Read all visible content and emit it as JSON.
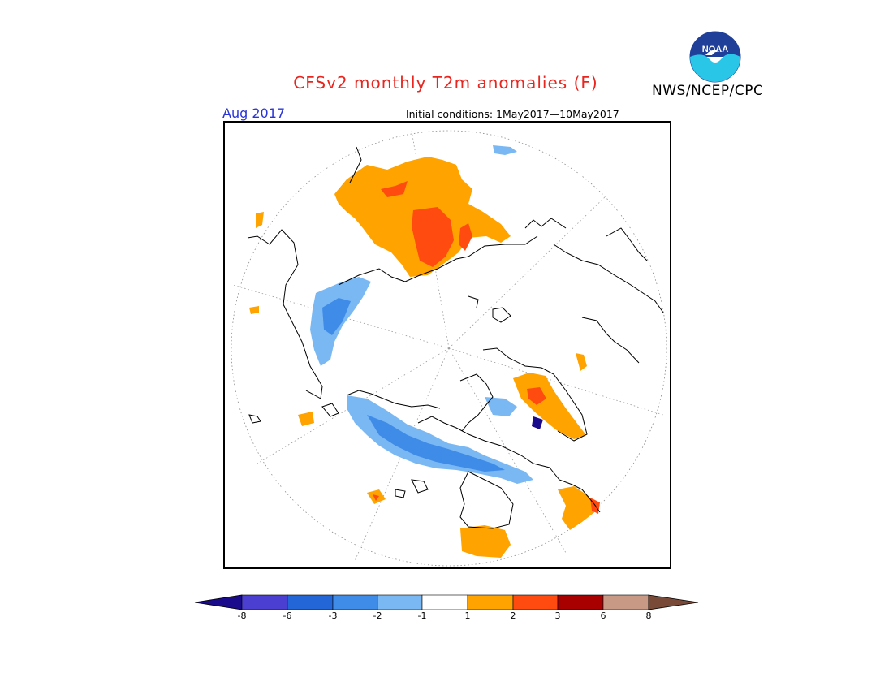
{
  "header": {
    "title": "CFSv2 monthly T2m anomalies (F)",
    "agency": "NWS/NCEP/CPC",
    "valid_month": "Aug 2017",
    "initial_conditions": "Initial conditions: 1May2017—10May2017"
  },
  "logo": {
    "text": "NOAA",
    "colors": {
      "top": "#1f3f99",
      "bottom": "#29c6e8"
    }
  },
  "map": {
    "projection": "north-polar-stereographic",
    "variable": "2m temperature anomaly",
    "units": "F"
  },
  "legend": {
    "tick_labels": [
      "-8",
      "-6",
      "-3",
      "-2",
      "-1",
      "1",
      "2",
      "3",
      "6",
      "8"
    ],
    "colors": [
      "#1a0a8c",
      "#4a3fd0",
      "#2366d8",
      "#3f8ce8",
      "#7ab8f4",
      "#ffffff",
      "#ffa300",
      "#ff4a10",
      "#a80000",
      "#c89a86",
      "#7a4a38"
    ]
  }
}
